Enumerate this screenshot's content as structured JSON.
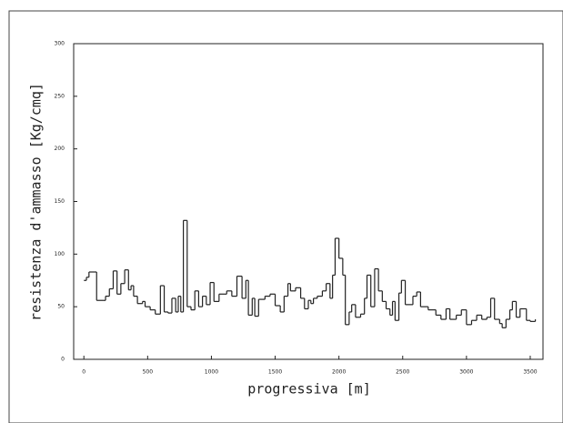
{
  "chart_data": {
    "type": "step",
    "xlabel": "progressiva [m]",
    "ylabel": "resistenza d'ammasso [Kg/cmq]",
    "color": "#222222",
    "xlim": [
      -80,
      3600
    ],
    "ylim": [
      0,
      300
    ],
    "xticks": [
      0,
      500,
      1000,
      1500,
      2000,
      2500,
      3000,
      3500
    ],
    "yticks": [
      0,
      50,
      100,
      150,
      200,
      250,
      300
    ],
    "x": [
      0,
      20,
      40,
      100,
      170,
      200,
      230,
      260,
      290,
      320,
      350,
      370,
      390,
      420,
      460,
      480,
      520,
      560,
      600,
      630,
      660,
      690,
      720,
      740,
      760,
      780,
      810,
      840,
      870,
      900,
      930,
      960,
      990,
      1020,
      1060,
      1120,
      1160,
      1200,
      1240,
      1270,
      1290,
      1320,
      1340,
      1370,
      1420,
      1460,
      1500,
      1540,
      1570,
      1600,
      1620,
      1660,
      1700,
      1730,
      1760,
      1780,
      1800,
      1830,
      1870,
      1900,
      1930,
      1950,
      1970,
      2000,
      2030,
      2050,
      2080,
      2100,
      2130,
      2170,
      2200,
      2220,
      2250,
      2280,
      2310,
      2340,
      2370,
      2400,
      2420,
      2440,
      2470,
      2490,
      2520,
      2580,
      2610,
      2640,
      2700,
      2760,
      2800,
      2840,
      2870,
      2920,
      2960,
      3000,
      3040,
      3080,
      3120,
      3160,
      3190,
      3220,
      3260,
      3280,
      3310,
      3340,
      3360,
      3390,
      3420,
      3470,
      3500,
      3540
    ],
    "values": [
      75,
      78,
      83,
      56,
      60,
      67,
      84,
      62,
      72,
      85,
      66,
      70,
      60,
      53,
      55,
      50,
      47,
      43,
      70,
      45,
      44,
      58,
      45,
      60,
      45,
      132,
      50,
      47,
      65,
      50,
      60,
      52,
      73,
      55,
      62,
      65,
      60,
      79,
      58,
      75,
      42,
      58,
      41,
      57,
      60,
      62,
      51,
      45,
      60,
      72,
      65,
      68,
      58,
      48,
      56,
      53,
      58,
      60,
      65,
      72,
      58,
      80,
      115,
      96,
      80,
      33,
      45,
      52,
      40,
      43,
      58,
      80,
      50,
      86,
      65,
      55,
      48,
      42,
      55,
      37,
      63,
      75,
      52,
      60,
      64,
      50,
      47,
      42,
      38,
      48,
      38,
      42,
      47,
      33,
      37,
      42,
      38,
      40,
      58,
      38,
      34,
      30,
      38,
      47,
      55,
      40,
      48,
      37,
      36,
      38
    ]
  }
}
